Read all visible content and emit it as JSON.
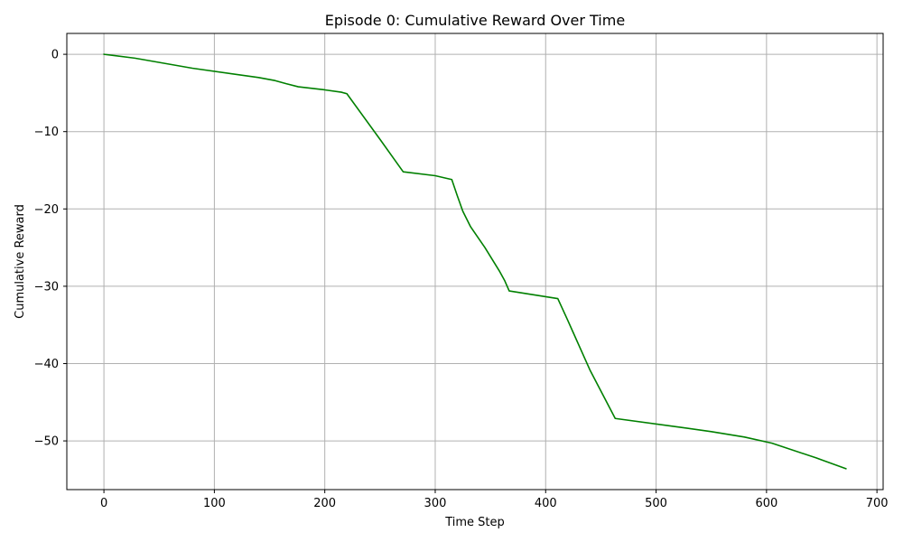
{
  "chart_data": {
    "type": "line",
    "title": "Episode 0: Cumulative Reward Over Time",
    "xlabel": "Time Step",
    "ylabel": "Cumulative Reward",
    "xlim": [
      -33.6,
      705.6
    ],
    "ylim": [
      -56.3,
      2.7
    ],
    "xticks": [
      0,
      100,
      200,
      300,
      400,
      500,
      600,
      700
    ],
    "yticks": [
      0,
      -10,
      -20,
      -30,
      -40,
      -50
    ],
    "xtick_labels": [
      "0",
      "100",
      "200",
      "300",
      "400",
      "500",
      "600",
      "700"
    ],
    "ytick_labels": [
      "0",
      "−10",
      "−20",
      "−30",
      "−40",
      "−50"
    ],
    "grid": true,
    "line_color": "#008000",
    "series": [
      {
        "x": [
          0,
          28,
          80,
          140,
          155,
          165,
          176,
          200,
          215,
          220,
          250,
          265,
          271,
          300,
          315,
          320,
          325,
          332,
          345,
          358,
          363,
          367,
          411,
          420,
          425,
          440,
          463,
          520,
          550,
          580,
          605,
          645,
          672
        ],
        "y": [
          0,
          -0.5,
          -1.8,
          -3.0,
          -3.4,
          -3.8,
          -4.2,
          -4.6,
          -4.9,
          -5.1,
          -11.0,
          -14.0,
          -15.2,
          -15.7,
          -16.2,
          -18.3,
          -20.3,
          -22.3,
          -25.0,
          -28.0,
          -29.3,
          -30.6,
          -31.6,
          -34.4,
          -36.0,
          -40.8,
          -47.1,
          -48.2,
          -48.8,
          -49.5,
          -50.3,
          -52.2,
          -53.6
        ]
      }
    ]
  }
}
